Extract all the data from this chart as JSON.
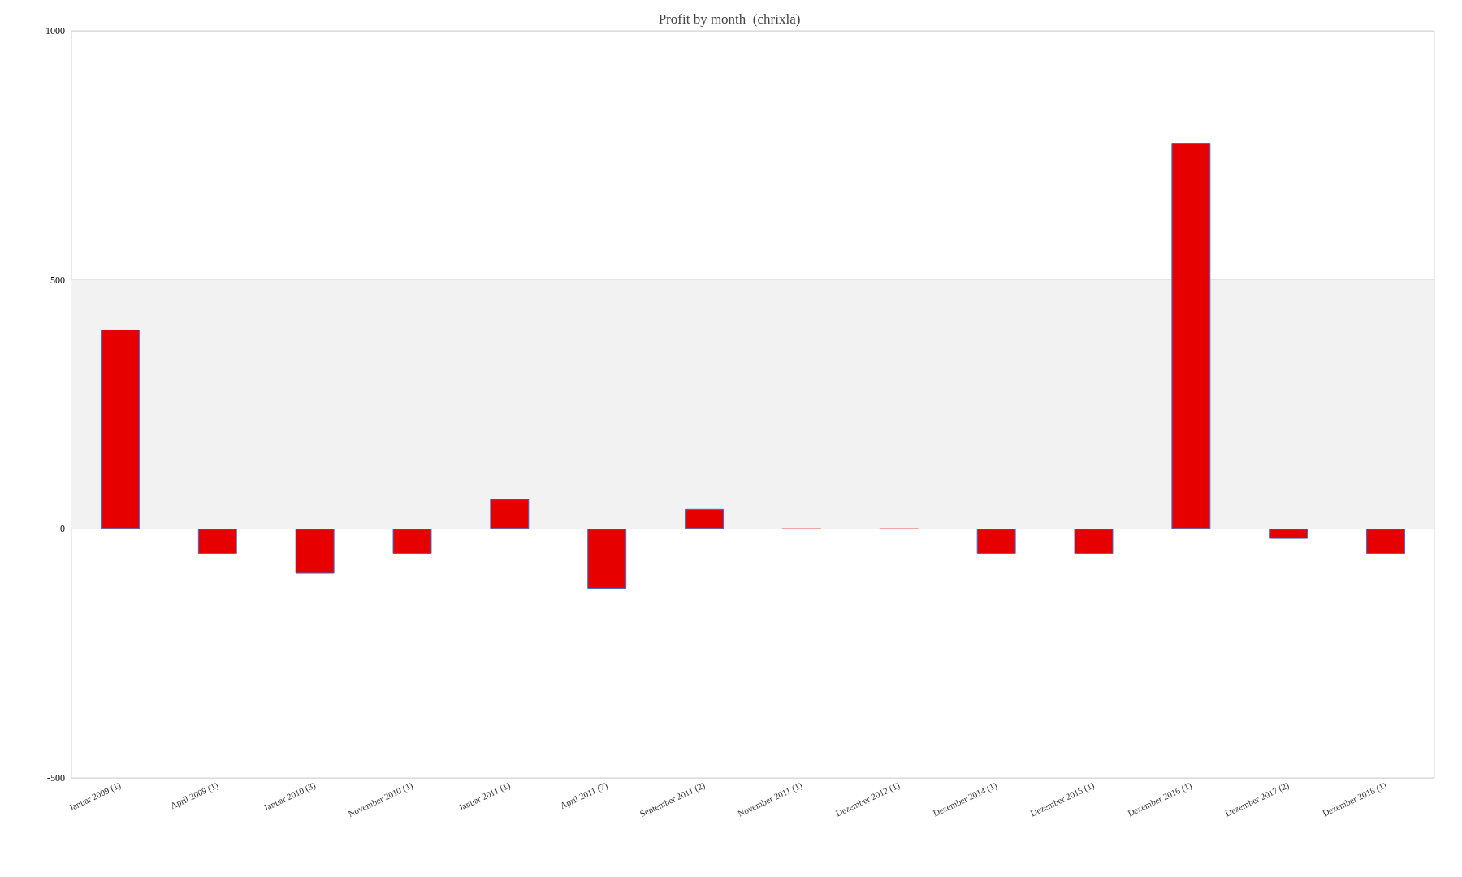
{
  "chart_data": {
    "type": "bar",
    "title": "Profit by month  (chrixla)",
    "categories": [
      "Januar 2009 (1)",
      "April 2009 (1)",
      "Januar 2010 (3)",
      "November 2010 (1)",
      "Januar 2011 (1)",
      "April 2011 (7)",
      "September 2011 (2)",
      "November 2011 (1)",
      "Dezember 2012 (1)",
      "Dezember 2014 (1)",
      "Dezember 2015 (1)",
      "Dezember 2016 (1)",
      "Dezember 2017 (2)",
      "Dezember 2018 (1)"
    ],
    "values": [
      400,
      -50,
      -90,
      -50,
      60,
      -120,
      40,
      0,
      0,
      -50,
      -50,
      775,
      -20,
      -50
    ],
    "color": "#e60000",
    "ylim": [
      -500,
      1000
    ],
    "yticks": [
      -500,
      0,
      500,
      1000
    ],
    "grid": "y",
    "bands": [
      {
        "axis": "y",
        "from": 0,
        "to": 500,
        "color": "#f2f2f2"
      }
    ]
  }
}
